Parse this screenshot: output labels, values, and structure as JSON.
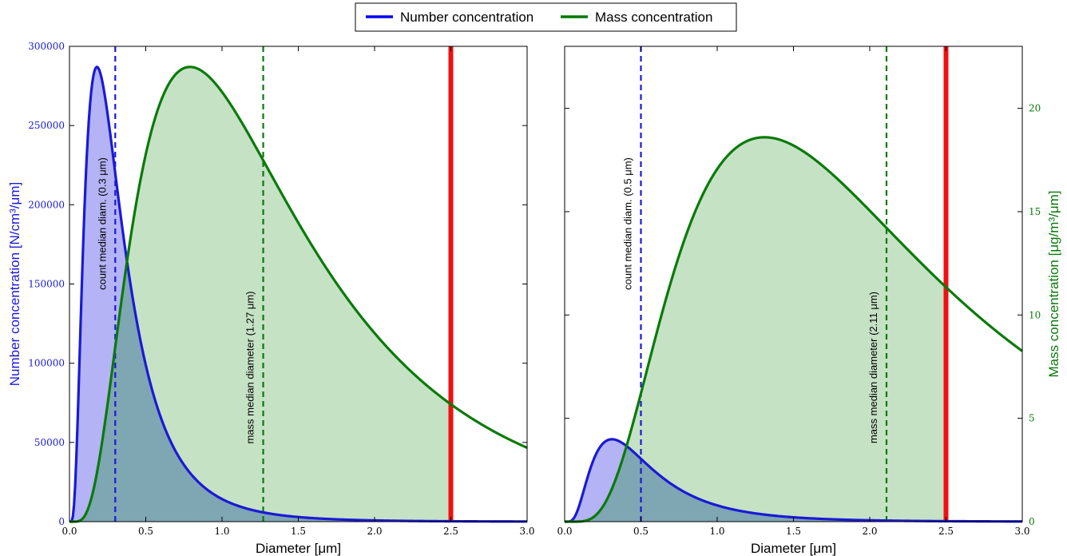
{
  "legend": {
    "entries": [
      {
        "label": "Number concentration",
        "color": "#0000ee"
      },
      {
        "label": "Mass concentration",
        "color": "#007700"
      }
    ],
    "placement": "top-center"
  },
  "colors": {
    "number": "#1a1ad6",
    "number_fill": "#b3b3f5",
    "mass": "#0a7a0a",
    "mass_fill": "#b2d8b0",
    "overlap_fill": "#7ea6b3",
    "pm_line": "#ee1111"
  },
  "chart_data": [
    {
      "type": "area",
      "panel": "left",
      "xlabel": "Diameter [μm]",
      "ylabel": "Number concentration [N/cm³/μm]",
      "xlim": [
        0,
        3.0
      ],
      "ylim": [
        0,
        300000
      ],
      "xticks": [
        "0.0",
        "0.5",
        "1.0",
        "1.5",
        "2.0",
        "2.5",
        "3.0"
      ],
      "yticks": [
        "0",
        "50000",
        "100000",
        "150000",
        "200000",
        "250000",
        "300000"
      ],
      "series": [
        {
          "name": "Number concentration",
          "axis": "left",
          "peak_x": 0.18,
          "peak_y": 287000,
          "shape_sigma": 0.7,
          "filled_to_x": 2.5
        },
        {
          "name": "Mass concentration",
          "axis": "left-scaled",
          "peak_x": 0.79,
          "peak_y": 287000,
          "shape_sigma": 0.7,
          "filled_to_x": 2.5
        }
      ],
      "vlines": [
        {
          "x": 0.3,
          "color": "blue",
          "style": "dashed",
          "label": "count median diam. (0.3 μm)"
        },
        {
          "x": 1.27,
          "color": "green",
          "style": "dashed",
          "label": "mass median diameter (1.27 μm)"
        },
        {
          "x": 2.5,
          "color": "red",
          "style": "solid",
          "label": ""
        }
      ]
    },
    {
      "type": "area",
      "panel": "right",
      "xlabel": "Diameter [μm]",
      "ylabel": "Mass concentration [μg/m³/μm]",
      "xlim": [
        0,
        3.0
      ],
      "ylim": [
        0,
        23
      ],
      "xticks": [
        "0.0",
        "0.5",
        "1.0",
        "1.5",
        "2.0",
        "2.5",
        "3.0"
      ],
      "yticks": [
        "0",
        "5",
        "10",
        "15",
        "20"
      ],
      "series": [
        {
          "name": "Number concentration",
          "axis": "left-shared",
          "peak_x": 0.31,
          "peak_y": 52000,
          "shape_sigma": 0.65,
          "filled_to_x": 2.5
        },
        {
          "name": "Mass concentration",
          "axis": "right",
          "peak_x": 1.31,
          "peak_y": 18.6,
          "shape_sigma": 0.65,
          "filled_to_x": 2.5
        }
      ],
      "vlines": [
        {
          "x": 0.5,
          "color": "blue",
          "style": "dashed",
          "label": "count median diam. (0.5 μm)"
        },
        {
          "x": 2.11,
          "color": "green",
          "style": "dashed",
          "label": "mass median diameter (2.11 μm)"
        },
        {
          "x": 2.5,
          "color": "red",
          "style": "solid",
          "label": ""
        }
      ]
    }
  ]
}
